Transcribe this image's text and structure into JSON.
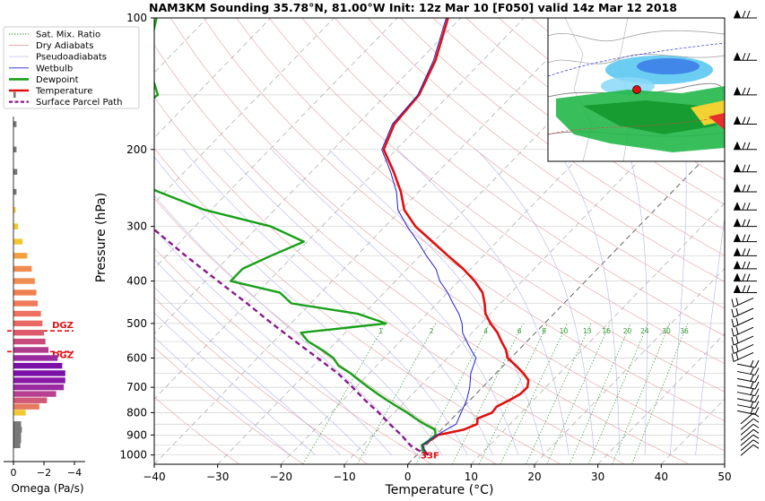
{
  "title": "NAM3KM Sounding 35.78°N, 81.00°W Init: 12z Mar 10 [F050] valid 14z Mar 12 2018",
  "legend": {
    "items": [
      {
        "label": "Sat. Mix. Ratio",
        "color": "#3a9a3a",
        "style": "dotted"
      },
      {
        "label": "Dry Adiabats",
        "color": "#e0a0a0",
        "style": "solid"
      },
      {
        "label": "Pseudoadiabats",
        "color": "#c8c8f0",
        "style": "solid"
      },
      {
        "label": "Wetbulb",
        "color": "#2020d0",
        "style": "solid"
      },
      {
        "label": "Dewpoint",
        "color": "#18a018",
        "style": "bold"
      },
      {
        "label": "Temperature",
        "color": "#e01010",
        "style": "bold"
      },
      {
        "label": "Surface Parcel Path",
        "color": "#8a1a8a",
        "style": "dashed"
      }
    ]
  },
  "omega_panel": {
    "xlabel": "Omega (Pa/s)",
    "ticks": [
      "0",
      "−2",
      "−4"
    ],
    "dgz_label": "DGZ",
    "bars": [
      {
        "p": 150,
        "w": -0.15,
        "c": "#777777"
      },
      {
        "p": 175,
        "w": -0.2,
        "c": "#777777"
      },
      {
        "p": 200,
        "w": -0.2,
        "c": "#777777"
      },
      {
        "p": 225,
        "w": -0.25,
        "c": "#777777"
      },
      {
        "p": 250,
        "w": -0.2,
        "c": "#777777"
      },
      {
        "p": 275,
        "w": -0.1,
        "c": "#f2c832"
      },
      {
        "p": 300,
        "w": -0.3,
        "c": "#f2c832"
      },
      {
        "p": 325,
        "w": -0.6,
        "c": "#f2c832"
      },
      {
        "p": 350,
        "w": -0.9,
        "c": "#f2a040"
      },
      {
        "p": 375,
        "w": -1.2,
        "c": "#f08c50"
      },
      {
        "p": 400,
        "w": -1.4,
        "c": "#f08c50"
      },
      {
        "p": 425,
        "w": -1.5,
        "c": "#f08050"
      },
      {
        "p": 450,
        "w": -1.6,
        "c": "#f07a5a"
      },
      {
        "p": 475,
        "w": -1.8,
        "c": "#ee7060"
      },
      {
        "p": 500,
        "w": -1.9,
        "c": "#e86a64"
      },
      {
        "p": 525,
        "w": -2.0,
        "c": "#dc5a6c"
      },
      {
        "p": 550,
        "w": -2.1,
        "c": "#c84a7c"
      },
      {
        "p": 575,
        "w": -2.3,
        "c": "#b03c8c"
      },
      {
        "p": 600,
        "w": -2.9,
        "c": "#9a2ca0"
      },
      {
        "p": 625,
        "w": -3.2,
        "c": "#7a10a6"
      },
      {
        "p": 650,
        "w": -3.4,
        "c": "#7a10a6"
      },
      {
        "p": 675,
        "w": -3.4,
        "c": "#8a18a6"
      },
      {
        "p": 700,
        "w": -3.3,
        "c": "#9a2aa0"
      },
      {
        "p": 725,
        "w": -2.8,
        "c": "#b84090"
      },
      {
        "p": 750,
        "w": -2.2,
        "c": "#d05a78"
      },
      {
        "p": 775,
        "w": -1.7,
        "c": "#e67a60"
      },
      {
        "p": 800,
        "w": -0.8,
        "c": "#f2c832"
      },
      {
        "p": 850,
        "w": -0.5,
        "c": "#777777"
      },
      {
        "p": 875,
        "w": -0.55,
        "c": "#777777"
      },
      {
        "p": 900,
        "w": -0.5,
        "c": "#777777"
      },
      {
        "p": 925,
        "w": -0.5,
        "c": "#777777"
      },
      {
        "p": 950,
        "w": -0.45,
        "c": "#777777"
      }
    ]
  },
  "map_inset": {
    "description_icon": "radar-map-inset"
  },
  "wind_barbs": {
    "icon": "wind-barb-icon"
  },
  "chart_data": {
    "type": "skew-t",
    "xlabel": "Temperature (°C)",
    "ylabel": "Pressure (hPa)",
    "xlim": [
      -40,
      50
    ],
    "ylim": [
      1050,
      100
    ],
    "x_ticks": [
      "−40",
      "−30",
      "−20",
      "−10",
      "0",
      "10",
      "20",
      "30",
      "40",
      "50"
    ],
    "y_ticks": [
      "100",
      "200",
      "300",
      "400",
      "500",
      "600",
      "700",
      "800",
      "900",
      "1000"
    ],
    "surface_label": "33F",
    "dgz_pressures": [
      520,
      580
    ],
    "mixing_ratio_labels": [
      "1",
      "2",
      "4",
      "6",
      "8",
      "10",
      "13",
      "16",
      "20",
      "24",
      "30",
      "36"
    ],
    "series": [
      {
        "name": "Temperature",
        "color": "#e01010",
        "points": [
          [
            1000,
            1.8
          ],
          [
            975,
            0.4
          ],
          [
            950,
            -0.6
          ],
          [
            925,
            -0.1
          ],
          [
            900,
            0.3
          ],
          [
            875,
            3.5
          ],
          [
            850,
            4.8
          ],
          [
            825,
            4.0
          ],
          [
            800,
            5.4
          ],
          [
            775,
            5.2
          ],
          [
            750,
            6.2
          ],
          [
            725,
            7.0
          ],
          [
            700,
            7.1
          ],
          [
            675,
            6.2
          ],
          [
            650,
            4.3
          ],
          [
            625,
            2.0
          ],
          [
            600,
            -0.5
          ],
          [
            575,
            -2.0
          ],
          [
            550,
            -4.0
          ],
          [
            525,
            -6.0
          ],
          [
            500,
            -8.5
          ],
          [
            475,
            -10.8
          ],
          [
            450,
            -12.5
          ],
          [
            425,
            -14.5
          ],
          [
            400,
            -17.5
          ],
          [
            375,
            -21.2
          ],
          [
            350,
            -25.6
          ],
          [
            325,
            -30.2
          ],
          [
            300,
            -35.2
          ],
          [
            275,
            -39.5
          ],
          [
            250,
            -42.8
          ],
          [
            225,
            -47.0
          ],
          [
            200,
            -52.0
          ],
          [
            175,
            -54.2
          ],
          [
            150,
            -54.8
          ],
          [
            125,
            -57.5
          ],
          [
            100,
            -62.0
          ]
        ]
      },
      {
        "name": "Dewpoint",
        "color": "#18a018",
        "points": [
          [
            1000,
            1.5
          ],
          [
            975,
            0.2
          ],
          [
            950,
            -0.7
          ],
          [
            925,
            -0.3
          ],
          [
            900,
            -0.1
          ],
          [
            875,
            -1.0
          ],
          [
            850,
            -3.5
          ],
          [
            825,
            -5.8
          ],
          [
            800,
            -8.0
          ],
          [
            775,
            -10.5
          ],
          [
            750,
            -13.0
          ],
          [
            725,
            -15.5
          ],
          [
            700,
            -18.0
          ],
          [
            675,
            -20.5
          ],
          [
            650,
            -23.0
          ],
          [
            625,
            -26.0
          ],
          [
            600,
            -28.0
          ],
          [
            575,
            -31.0
          ],
          [
            550,
            -34.5
          ],
          [
            525,
            -37.0
          ],
          [
            500,
            -25.0
          ],
          [
            475,
            -31.0
          ],
          [
            450,
            -43.0
          ],
          [
            425,
            -46.5
          ],
          [
            400,
            -56.0
          ],
          [
            375,
            -56.0
          ],
          [
            350,
            -53.5
          ],
          [
            325,
            -50.5
          ],
          [
            300,
            -58.0
          ],
          [
            275,
            -71.0
          ],
          [
            250,
            -81.0
          ],
          [
            225,
            -91.0
          ],
          [
            200,
            -98.0
          ],
          [
            175,
            -98.0
          ],
          [
            150,
            -96.0
          ],
          [
            125,
            -103.0
          ],
          [
            100,
            -108.0
          ]
        ]
      },
      {
        "name": "Wetbulb",
        "color": "#2020d0",
        "points": [
          [
            1000,
            1.6
          ],
          [
            950,
            -0.6
          ],
          [
            900,
            0.1
          ],
          [
            850,
            1.5
          ],
          [
            800,
            0.5
          ],
          [
            750,
            -0.5
          ],
          [
            700,
            -2.0
          ],
          [
            650,
            -4.0
          ],
          [
            600,
            -5.5
          ],
          [
            575,
            -7.5
          ],
          [
            550,
            -9.5
          ],
          [
            525,
            -11.5
          ],
          [
            500,
            -13.0
          ],
          [
            475,
            -15.0
          ],
          [
            450,
            -17.5
          ],
          [
            425,
            -20.0
          ],
          [
            400,
            -23.0
          ],
          [
            375,
            -25.5
          ],
          [
            350,
            -29.0
          ],
          [
            325,
            -32.5
          ],
          [
            300,
            -36.5
          ],
          [
            275,
            -40.5
          ],
          [
            250,
            -43.5
          ],
          [
            225,
            -47.5
          ],
          [
            200,
            -52.3
          ],
          [
            175,
            -54.5
          ],
          [
            150,
            -55.0
          ],
          [
            125,
            -57.8
          ],
          [
            100,
            -62.3
          ]
        ]
      },
      {
        "name": "Surface Parcel Path",
        "color": "#8a1a8a",
        "points": [
          [
            1000,
            1.8
          ],
          [
            975,
            -0.5
          ],
          [
            950,
            -2.5
          ],
          [
            900,
            -5.5
          ],
          [
            850,
            -9.0
          ],
          [
            800,
            -12.5
          ],
          [
            750,
            -16.5
          ],
          [
            700,
            -20.5
          ],
          [
            650,
            -25.0
          ],
          [
            600,
            -30.5
          ],
          [
            550,
            -36.5
          ],
          [
            500,
            -43.0
          ],
          [
            450,
            -50.0
          ],
          [
            400,
            -58.0
          ],
          [
            350,
            -67.0
          ],
          [
            300,
            -77.0
          ],
          [
            270,
            -83.0
          ]
        ]
      }
    ]
  }
}
